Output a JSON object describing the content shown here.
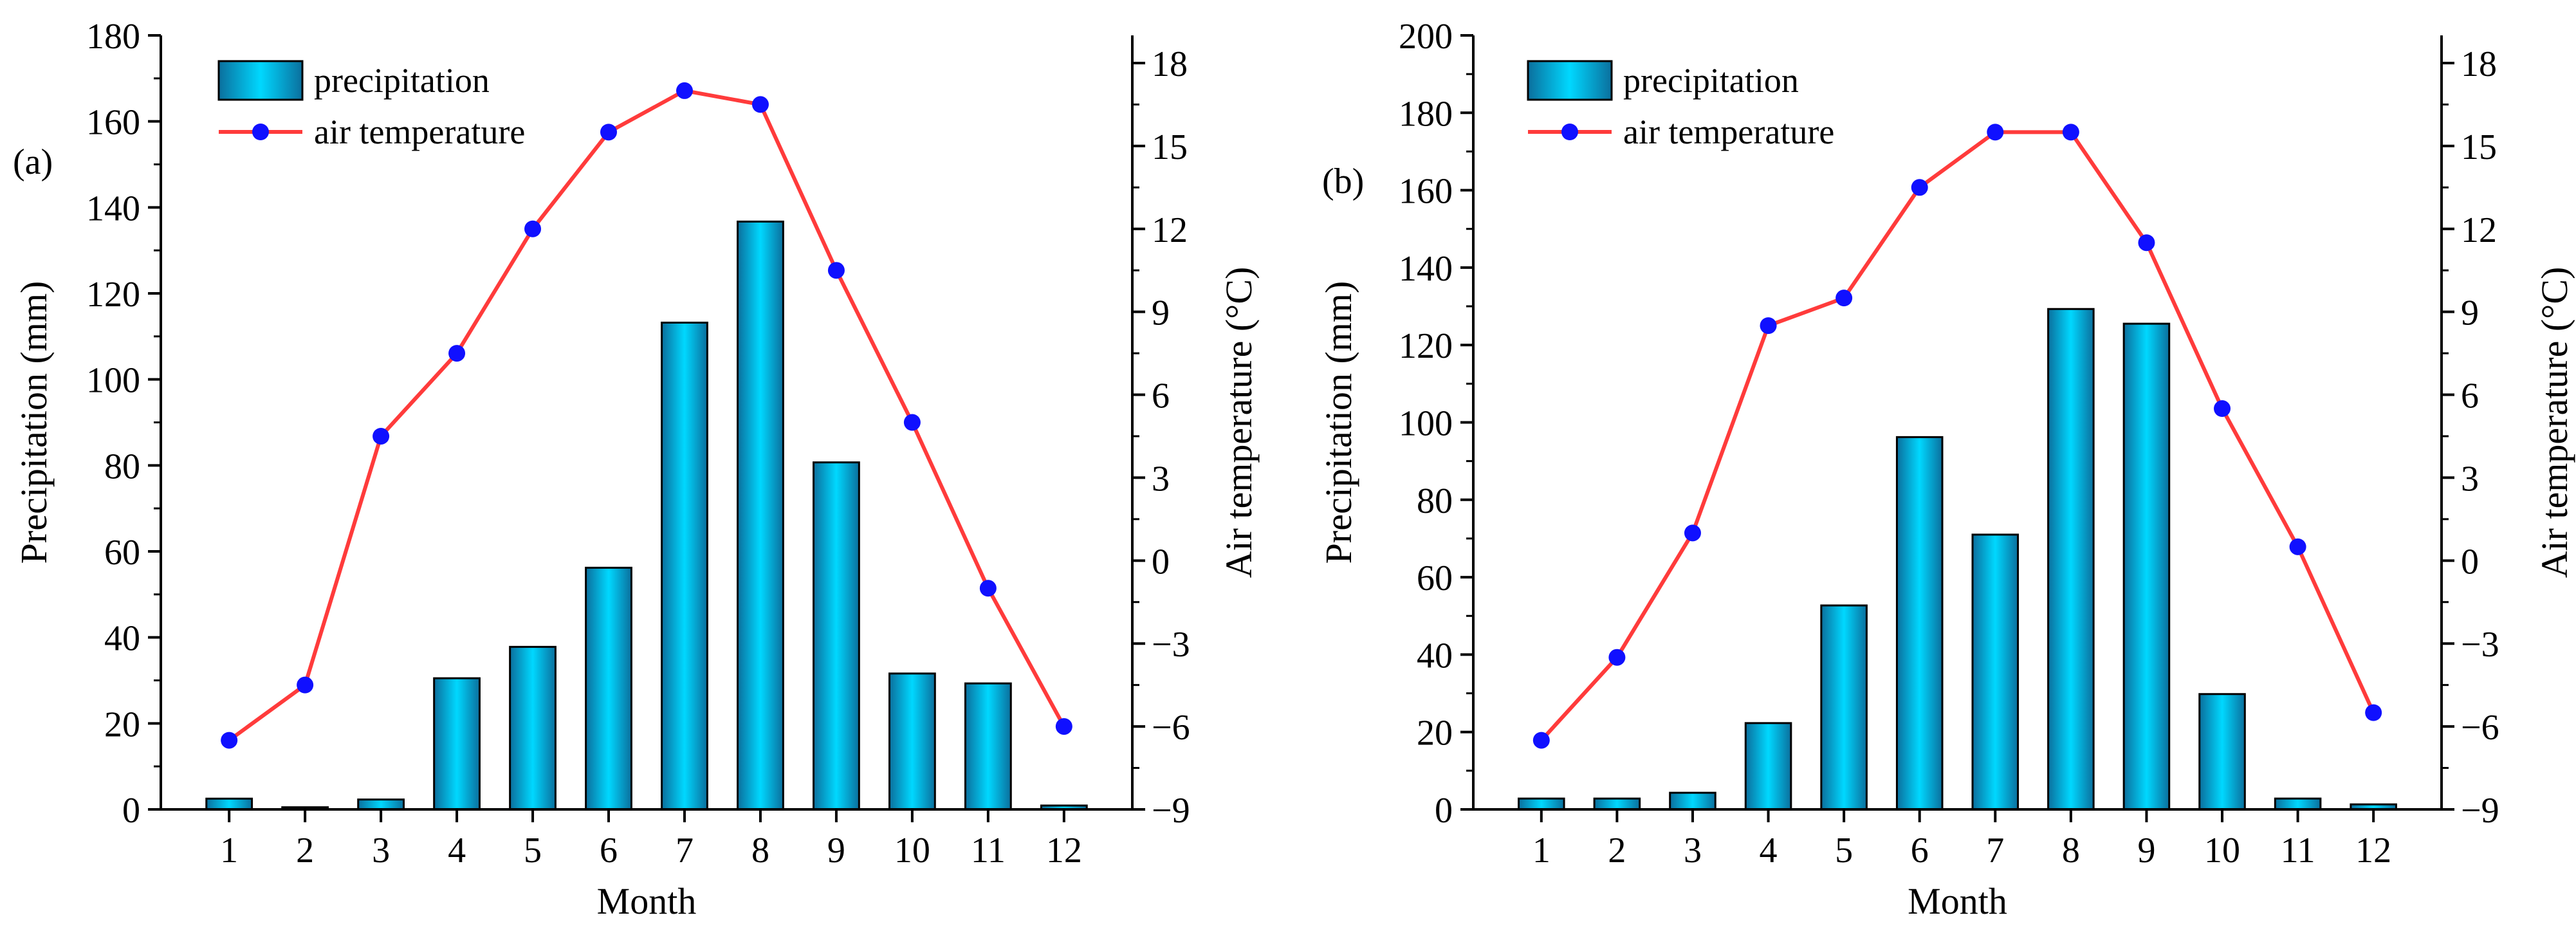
{
  "chart_data": [
    {
      "type": "bar+line",
      "panel_label": "(a)",
      "xlabel": "Month",
      "ylabel_left": "Precipitation (mm)",
      "ylabel_right": "Air temperature (°C)",
      "categories": [
        "1",
        "2",
        "3",
        "4",
        "5",
        "6",
        "7",
        "8",
        "9",
        "10",
        "11",
        "12"
      ],
      "ylim_left": [
        0,
        180
      ],
      "yticks_left": [
        "0",
        "20",
        "40",
        "60",
        "80",
        "100",
        "120",
        "140",
        "160",
        "180"
      ],
      "ylim_right": [
        -9,
        19
      ],
      "yticks_right": [
        "-9",
        "-6",
        "-3",
        "0",
        "3",
        "6",
        "9",
        "12",
        "15",
        "18"
      ],
      "legend": {
        "placement": "top-left",
        "bar_label": "precipitation",
        "line_label": "air temperature"
      },
      "series": [
        {
          "name": "precipitation",
          "kind": "bar",
          "axis": "left",
          "values": [
            2.5,
            0.5,
            2.3,
            30.5,
            37.8,
            56.2,
            113.2,
            136.7,
            80.7,
            31.6,
            29.3,
            0.9
          ]
        },
        {
          "name": "air temperature",
          "kind": "line",
          "axis": "right",
          "values": [
            -6.5,
            -4.5,
            4.5,
            7.5,
            12.0,
            15.5,
            17.0,
            16.5,
            10.5,
            5.0,
            -1.0,
            -6.0
          ]
        }
      ],
      "grid": false,
      "colors": {
        "bar_top": "#00d8ff",
        "bar_bottom": "#0b6f9d",
        "line": "#ff3b3b",
        "marker": "#1010ff"
      }
    },
    {
      "type": "bar+line",
      "panel_label": "(b)",
      "xlabel": "Month",
      "ylabel_left": "Precipitation (mm)",
      "ylabel_right": "Air temperature (°C)",
      "categories": [
        "1",
        "2",
        "3",
        "4",
        "5",
        "6",
        "7",
        "8",
        "9",
        "10",
        "11",
        "12"
      ],
      "ylim_left": [
        0,
        200
      ],
      "yticks_left": [
        "0",
        "20",
        "40",
        "60",
        "80",
        "100",
        "120",
        "140",
        "160",
        "180",
        "200"
      ],
      "ylim_right": [
        -9,
        19
      ],
      "yticks_right": [
        "-9",
        "-6",
        "-3",
        "0",
        "3",
        "6",
        "9",
        "12",
        "15",
        "18"
      ],
      "legend": {
        "placement": "top-left",
        "bar_label": "precipitation",
        "line_label": "air temperature"
      },
      "series": [
        {
          "name": "precipitation",
          "kind": "bar",
          "axis": "left",
          "values": [
            2.8,
            2.8,
            4.3,
            22.3,
            52.7,
            96.2,
            71.0,
            129.3,
            125.5,
            29.8,
            2.8,
            1.3
          ]
        },
        {
          "name": "air temperature",
          "kind": "line",
          "axis": "right",
          "values": [
            -6.5,
            -3.5,
            1.0,
            8.5,
            9.5,
            13.5,
            15.5,
            15.5,
            11.5,
            5.5,
            0.5,
            -5.5
          ]
        }
      ],
      "grid": false,
      "colors": {
        "bar_top": "#00d8ff",
        "bar_bottom": "#0b6f9d",
        "line": "#ff3b3b",
        "marker": "#1010ff"
      }
    }
  ]
}
